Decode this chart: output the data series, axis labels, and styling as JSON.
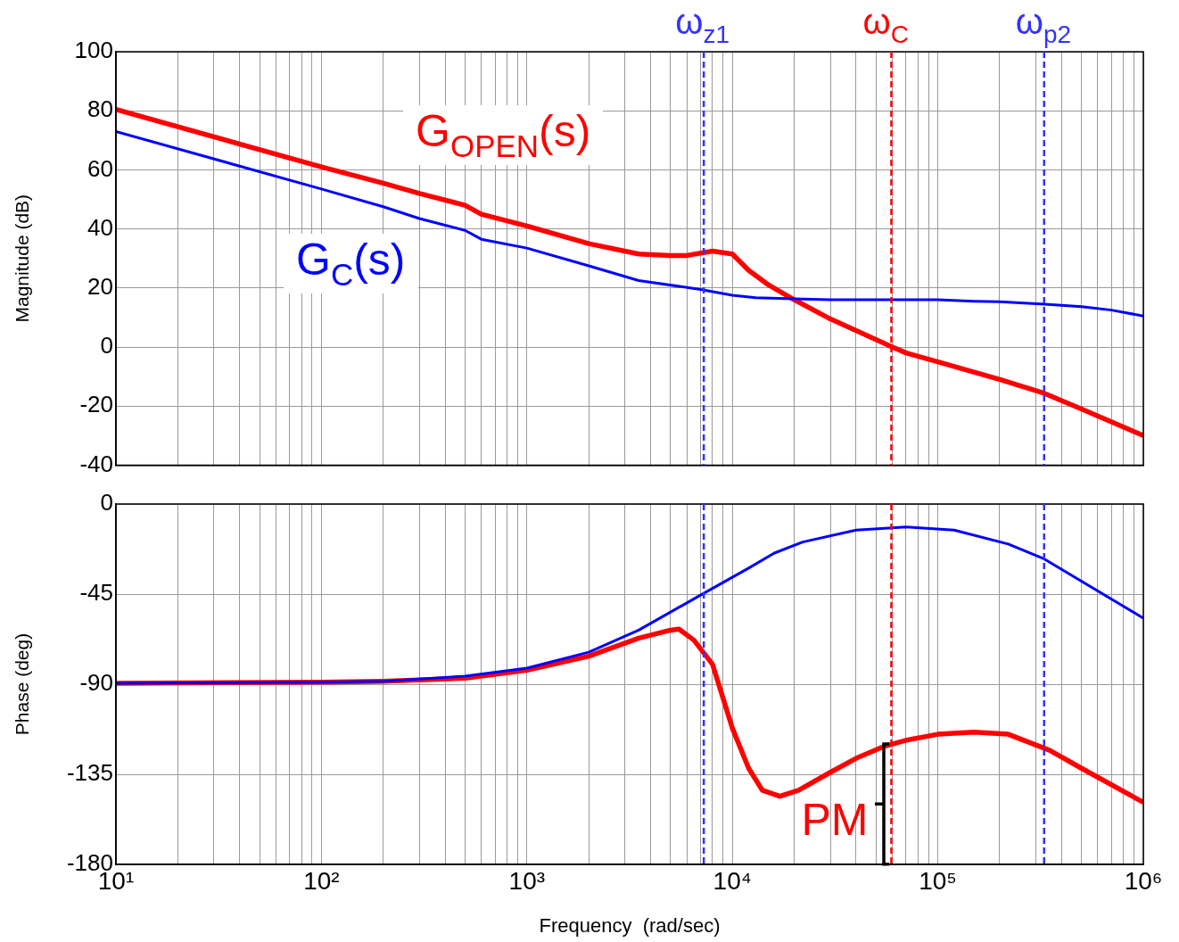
{
  "chart_data": [
    {
      "type": "line",
      "ylabel": "Magnitude (dB)",
      "log": "x",
      "grid": true,
      "legend": false,
      "tick_labels": "y",
      "xlim": [
        10,
        1000000
      ],
      "ylim": [
        -40,
        100
      ],
      "yticks": [
        -40,
        -20,
        0,
        20,
        40,
        60,
        80,
        100
      ],
      "xticks": [
        {
          "value": 10,
          "label": null
        },
        {
          "value": 20,
          "label": null
        },
        {
          "value": 30,
          "label": null
        },
        {
          "value": 40,
          "label": null
        },
        {
          "value": 50,
          "label": null
        },
        {
          "value": 60,
          "label": null
        },
        {
          "value": 70,
          "label": null
        },
        {
          "value": 80,
          "label": null
        },
        {
          "value": 90,
          "label": null
        },
        {
          "value": 100,
          "label": null
        },
        {
          "value": 200,
          "label": null
        },
        {
          "value": 300,
          "label": null
        },
        {
          "value": 400,
          "label": null
        },
        {
          "value": 500,
          "label": null
        },
        {
          "value": 600,
          "label": null
        },
        {
          "value": 700,
          "label": null
        },
        {
          "value": 800,
          "label": null
        },
        {
          "value": 900,
          "label": null
        },
        {
          "value": 1000,
          "label": null
        },
        {
          "value": 2000,
          "label": null
        },
        {
          "value": 3000,
          "label": null
        },
        {
          "value": 4000,
          "label": null
        },
        {
          "value": 5000,
          "label": null
        },
        {
          "value": 6000,
          "label": null
        },
        {
          "value": 7000,
          "label": null
        },
        {
          "value": 8000,
          "label": null
        },
        {
          "value": 9000,
          "label": null
        },
        {
          "value": 10000,
          "label": null
        },
        {
          "value": 20000,
          "label": null
        },
        {
          "value": 30000,
          "label": null
        },
        {
          "value": 40000,
          "label": null
        },
        {
          "value": 50000,
          "label": null
        },
        {
          "value": 60000,
          "label": null
        },
        {
          "value": 70000,
          "label": null
        },
        {
          "value": 80000,
          "label": null
        },
        {
          "value": 90000,
          "label": null
        },
        {
          "value": 100000,
          "label": null
        },
        {
          "value": 200000,
          "label": null
        },
        {
          "value": 300000,
          "label": null
        },
        {
          "value": 400000,
          "label": null
        },
        {
          "value": 500000,
          "label": null
        },
        {
          "value": 600000,
          "label": null
        },
        {
          "value": 700000,
          "label": null
        },
        {
          "value": 800000,
          "label": null
        },
        {
          "value": 900000,
          "label": null
        },
        {
          "value": 1000000,
          "label": null
        }
      ],
      "series": [
        {
          "name": "G$_{OPEN}$(s)",
          "color": "#ff0000",
          "x": [
            10,
            100,
            200,
            300,
            500,
            600,
            1000,
            2000,
            3500,
            5000,
            6000,
            8000,
            10000,
            12000,
            15000,
            20000,
            30000,
            60000,
            70000,
            100000,
            200000,
            330000,
            500000,
            1000000
          ],
          "values": [
            80.5,
            61,
            55.5,
            52,
            48,
            45,
            41,
            35,
            31.5,
            31,
            31,
            32.5,
            31.5,
            26,
            21,
            16,
            9.5,
            0,
            -2,
            -5,
            -11,
            -15.7,
            -21,
            -30
          ]
        },
        {
          "name": "G$_{C}$(s)",
          "color": "#0000ff",
          "x": [
            10,
            100,
            200,
            300,
            500,
            600,
            1000,
            2000,
            3500,
            7000,
            10000,
            13000,
            20000,
            30000,
            100000,
            150000,
            200000,
            330000,
            500000,
            700000,
            1000000
          ],
          "values": [
            73,
            53.5,
            47.5,
            43.5,
            39.5,
            36.5,
            33.5,
            27.5,
            22.5,
            19.5,
            17.5,
            16.7,
            16.3,
            16,
            16,
            15.5,
            15.3,
            14.5,
            13.7,
            12.5,
            10.5
          ]
        }
      ],
      "ref_lines": [
        {
          "axis": "x",
          "value": 7260,
          "label": "ω$_{z1}$",
          "color": "#3333ff",
          "line_style": "dashed"
        },
        {
          "axis": "x",
          "value": 59400,
          "label": "ω$_{C}$",
          "color": "#ff0000",
          "line_style": "dashed"
        },
        {
          "axis": "x",
          "value": 329000,
          "label": "ω$_{p2}$",
          "color": "#3333ff",
          "line_style": "dashed"
        }
      ]
    },
    {
      "type": "line",
      "ylabel": "Phase (deg)",
      "xlabel": "Frequency  (rad/sec)",
      "log": "x",
      "grid": true,
      "legend": false,
      "xlim": [
        10,
        1000000
      ],
      "ylim": [
        -180,
        0
      ],
      "yticks": [
        -180,
        -135,
        -90,
        -45,
        0
      ],
      "xticks": [
        {
          "value": 10,
          "label": "10¹"
        },
        {
          "value": 20,
          "label": null
        },
        {
          "value": 30,
          "label": null
        },
        {
          "value": 40,
          "label": null
        },
        {
          "value": 50,
          "label": null
        },
        {
          "value": 60,
          "label": null
        },
        {
          "value": 70,
          "label": null
        },
        {
          "value": 80,
          "label": null
        },
        {
          "value": 90,
          "label": null
        },
        {
          "value": 100,
          "label": "10²"
        },
        {
          "value": 200,
          "label": null
        },
        {
          "value": 300,
          "label": null
        },
        {
          "value": 400,
          "label": null
        },
        {
          "value": 500,
          "label": null
        },
        {
          "value": 600,
          "label": null
        },
        {
          "value": 700,
          "label": null
        },
        {
          "value": 800,
          "label": null
        },
        {
          "value": 900,
          "label": null
        },
        {
          "value": 1000,
          "label": "10³"
        },
        {
          "value": 2000,
          "label": null
        },
        {
          "value": 3000,
          "label": null
        },
        {
          "value": 4000,
          "label": null
        },
        {
          "value": 5000,
          "label": null
        },
        {
          "value": 6000,
          "label": null
        },
        {
          "value": 7000,
          "label": null
        },
        {
          "value": 8000,
          "label": null
        },
        {
          "value": 9000,
          "label": null
        },
        {
          "value": 10000,
          "label": "10⁴"
        },
        {
          "value": 20000,
          "label": null
        },
        {
          "value": 30000,
          "label": null
        },
        {
          "value": 40000,
          "label": null
        },
        {
          "value": 50000,
          "label": null
        },
        {
          "value": 60000,
          "label": null
        },
        {
          "value": 70000,
          "label": null
        },
        {
          "value": 80000,
          "label": null
        },
        {
          "value": 90000,
          "label": null
        },
        {
          "value": 100000,
          "label": "10⁵"
        },
        {
          "value": 200000,
          "label": null
        },
        {
          "value": 300000,
          "label": null
        },
        {
          "value": 400000,
          "label": null
        },
        {
          "value": 500000,
          "label": null
        },
        {
          "value": 600000,
          "label": null
        },
        {
          "value": 700000,
          "label": null
        },
        {
          "value": 800000,
          "label": null
        },
        {
          "value": 900000,
          "label": null
        },
        {
          "value": 1000000,
          "label": "10⁶"
        }
      ],
      "series": [
        {
          "color": "#ff0000",
          "x": [
            10,
            100,
            200,
            500,
            1000,
            2000,
            3500,
            5000,
            5500,
            6500,
            8000,
            10000,
            12000,
            14000,
            17000,
            21000,
            30000,
            40000,
            55000,
            70000,
            100000,
            150000,
            220000,
            350000,
            500000,
            1000000
          ],
          "values": [
            -89.5,
            -89,
            -88.5,
            -87,
            -83,
            -76,
            -67,
            -63,
            -62.5,
            -68,
            -80,
            -112,
            -132,
            -143,
            -146,
            -143,
            -134,
            -127,
            -121,
            -118,
            -115,
            -114,
            -115,
            -123,
            -132,
            -149
          ]
        },
        {
          "color": "#0000ff",
          "x": [
            10,
            100,
            200,
            500,
            1000,
            2000,
            3500,
            7000,
            12000,
            16000,
            22000,
            40000,
            70000,
            120000,
            220000,
            330000,
            1000000
          ],
          "values": [
            -89.5,
            -89,
            -88.5,
            -86,
            -82,
            -74,
            -63,
            -45.5,
            -32,
            -24.5,
            -19,
            -13,
            -11.5,
            -13,
            -20,
            -27.5,
            -57
          ]
        }
      ],
      "ref_lines": [
        {
          "axis": "x",
          "value": 7260,
          "color": "#3333ff",
          "line_style": "dashed"
        },
        {
          "axis": "x",
          "value": 59400,
          "color": "#ff0000",
          "line_style": "dashed"
        },
        {
          "axis": "x",
          "value": 329000,
          "color": "#3333ff",
          "line_style": "dashed"
        }
      ],
      "annotations": [
        {
          "text": "PM",
          "x": 59400,
          "y": -150
        }
      ]
    }
  ]
}
